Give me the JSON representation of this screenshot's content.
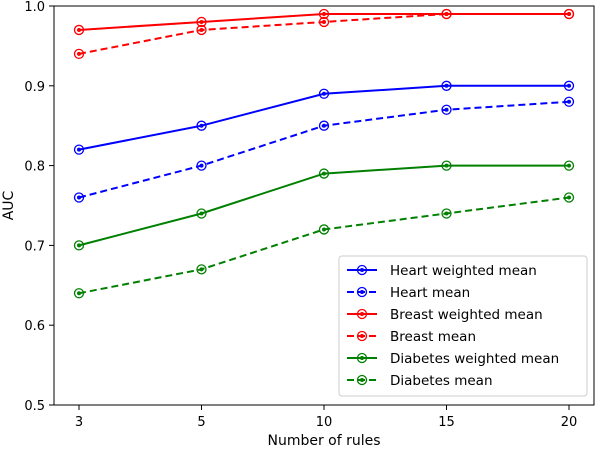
{
  "chart_data": {
    "type": "line",
    "title": "",
    "xlabel": "Number of rules",
    "ylabel": "AUC",
    "x": [
      3,
      5,
      10,
      15,
      20
    ],
    "xlim": [
      3,
      20
    ],
    "ylim": [
      0.5,
      1.0
    ],
    "yticks": [
      0.5,
      0.6,
      0.7,
      0.8,
      0.9,
      1.0
    ],
    "ytick_labels": [
      "0.5",
      "0.6",
      "0.7",
      "0.8",
      "0.9",
      "1.0"
    ],
    "xtick_labels": [
      "3",
      "5",
      "10",
      "15",
      "20"
    ],
    "x_scale": "categorical-evenly-spaced",
    "grid": false,
    "legend_position": "lower-right",
    "series": [
      {
        "name": "Heart weighted mean",
        "color": "#0000ff",
        "dashed": false,
        "values": [
          0.82,
          0.85,
          0.89,
          0.9,
          0.9
        ]
      },
      {
        "name": "Heart mean",
        "color": "#0000ff",
        "dashed": true,
        "values": [
          0.76,
          0.8,
          0.85,
          0.87,
          0.88
        ]
      },
      {
        "name": "Breast weighted mean",
        "color": "#ff0000",
        "dashed": false,
        "values": [
          0.97,
          0.98,
          0.99,
          0.99,
          0.99
        ]
      },
      {
        "name": "Breast mean",
        "color": "#ff0000",
        "dashed": true,
        "values": [
          0.94,
          0.97,
          0.98,
          0.99,
          0.99
        ]
      },
      {
        "name": "Diabetes weighted mean",
        "color": "#008000",
        "dashed": false,
        "values": [
          0.7,
          0.74,
          0.79,
          0.8,
          0.8
        ]
      },
      {
        "name": "Diabetes mean",
        "color": "#008000",
        "dashed": true,
        "values": [
          0.64,
          0.67,
          0.72,
          0.74,
          0.76
        ]
      }
    ]
  }
}
